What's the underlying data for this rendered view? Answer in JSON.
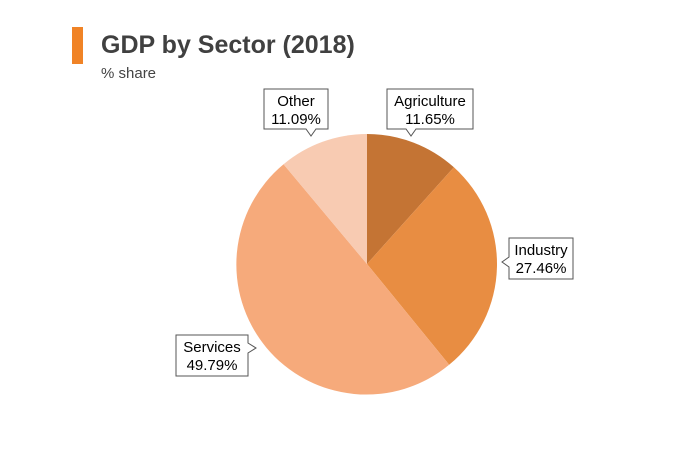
{
  "header": {
    "title": "GDP by Sector (2018)",
    "subtitle": "% share"
  },
  "chart_data": {
    "type": "pie",
    "title": "GDP by Sector (2018)",
    "subtitle": "% share",
    "slices": [
      {
        "label": "Agriculture",
        "value": 11.65,
        "display": "11.65%",
        "color": "#c47434"
      },
      {
        "label": "Industry",
        "value": 27.46,
        "display": "27.46%",
        "color": "#e88d42"
      },
      {
        "label": "Services",
        "value": 49.79,
        "display": "49.79%",
        "color": "#f6aa7b"
      },
      {
        "label": "Other",
        "value": 11.09,
        "display": "11.09%",
        "color": "#f8cbb2"
      }
    ],
    "start_angle": "12 o'clock, clockwise",
    "legend": "none"
  },
  "colors": {
    "accent": "#f08326",
    "title_text": "#404040"
  }
}
